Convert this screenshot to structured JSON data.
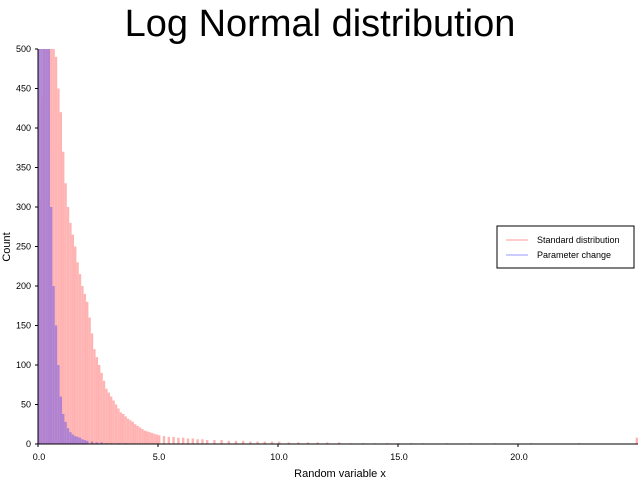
{
  "chart_data": {
    "type": "bar",
    "title": "Log Normal distribution",
    "xlabel": "Random variable x",
    "ylabel": "Count",
    "xlim": [
      0,
      25
    ],
    "ylim": [
      0,
      500
    ],
    "xticks": [
      "0.0",
      "5.0",
      "10.0",
      "15.0",
      "20.0"
    ],
    "xtick_values": [
      0,
      5,
      10,
      15,
      20
    ],
    "yticks": [
      "0",
      "50",
      "100",
      "150",
      "200",
      "250",
      "300",
      "350",
      "400",
      "450",
      "500"
    ],
    "ytick_values": [
      0,
      50,
      100,
      150,
      200,
      250,
      300,
      350,
      400,
      450,
      500
    ],
    "bin_width": 0.1,
    "grid": false,
    "legend_position": "right",
    "series": [
      {
        "name": "Standard distribution",
        "color": "#ffb3b3",
        "legend_color": "#ff9999",
        "x": [
          0.0,
          0.1,
          0.2,
          0.3,
          0.4,
          0.5,
          0.6,
          0.7,
          0.8,
          0.9,
          1.0,
          1.1,
          1.2,
          1.3,
          1.4,
          1.5,
          1.6,
          1.7,
          1.8,
          1.9,
          2.0,
          2.1,
          2.2,
          2.3,
          2.4,
          2.5,
          2.6,
          2.7,
          2.8,
          2.9,
          3.0,
          3.1,
          3.2,
          3.3,
          3.4,
          3.5,
          3.6,
          3.7,
          3.8,
          3.9,
          4.0,
          4.1,
          4.2,
          4.3,
          4.4,
          4.5,
          4.6,
          4.7,
          4.8,
          4.9,
          5.0,
          5.2,
          5.4,
          5.6,
          5.8,
          6.0,
          6.2,
          6.4,
          6.6,
          6.8,
          7.0,
          7.3,
          7.6,
          7.9,
          8.2,
          8.5,
          8.8,
          9.1,
          9.4,
          9.7,
          10.0,
          10.4,
          10.8,
          11.2,
          11.6,
          12.0,
          12.5,
          13.0,
          13.5,
          14.0,
          14.5,
          15.0,
          15.5,
          16.0,
          17.0,
          18.0,
          19.0,
          20.5,
          22.5,
          24.9
        ],
        "values": [
          310,
          440,
          500,
          500,
          500,
          500,
          500,
          490,
          450,
          420,
          370,
          330,
          300,
          280,
          265,
          250,
          230,
          215,
          200,
          190,
          180,
          160,
          140,
          120,
          110,
          100,
          90,
          80,
          70,
          65,
          60,
          55,
          50,
          45,
          40,
          38,
          35,
          32,
          30,
          28,
          25,
          23,
          21,
          19,
          17,
          16,
          15,
          14,
          13,
          12,
          11,
          10,
          9,
          9,
          8,
          8,
          7,
          7,
          6,
          6,
          5,
          5,
          5,
          4,
          4,
          4,
          3,
          3,
          3,
          3,
          3,
          2,
          2,
          2,
          2,
          2,
          2,
          1,
          1,
          1,
          1,
          1,
          1,
          1,
          1,
          1,
          1,
          1,
          1,
          8
        ]
      },
      {
        "name": "Parameter change",
        "color": "#ac7fd4",
        "legend_color": "#9999ff",
        "x": [
          0.0,
          0.1,
          0.2,
          0.3,
          0.4,
          0.5,
          0.6,
          0.7,
          0.8,
          0.9,
          1.0,
          1.1,
          1.2,
          1.3,
          1.4,
          1.5,
          1.6,
          1.7,
          1.8,
          1.9,
          2.0,
          2.2,
          2.4,
          2.6,
          2.8,
          3.0,
          3.3,
          3.6
        ],
        "values": [
          500,
          500,
          500,
          500,
          500,
          300,
          200,
          150,
          100,
          60,
          38,
          28,
          20,
          15,
          12,
          10,
          9,
          8,
          6,
          5,
          4,
          3,
          2,
          2,
          1,
          1,
          1,
          1
        ]
      }
    ]
  }
}
